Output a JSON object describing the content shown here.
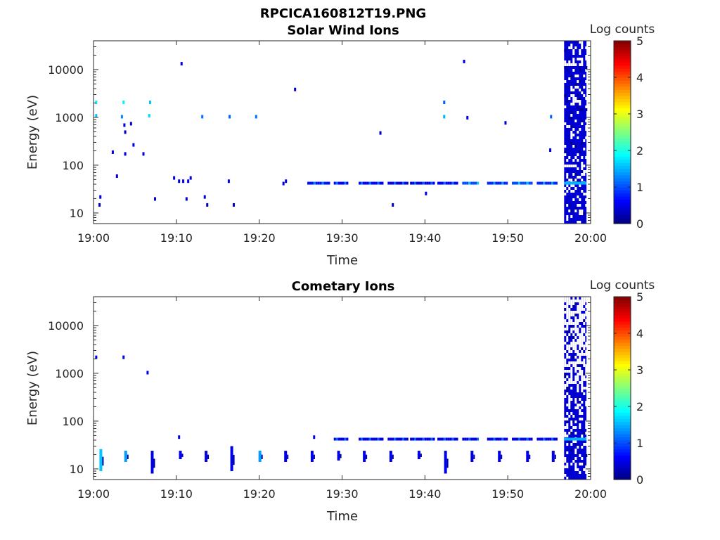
{
  "figure": {
    "title": "RPCICA160812T19.PNG"
  },
  "panels": [
    {
      "title": "Solar Wind Ions",
      "xlabel": "Time",
      "ylabel": "Energy (eV)",
      "colorbar_label": "Log counts"
    },
    {
      "title": "Cometary Ions",
      "xlabel": "Time",
      "ylabel": "Energy (eV)",
      "colorbar_label": "Log counts"
    }
  ],
  "chart_data": [
    {
      "type": "heatmap",
      "title": "Solar Wind Ions",
      "xlabel": "Time",
      "ylabel": "Energy (eV)",
      "x_range_minutes_after_1900": [
        0,
        60
      ],
      "xticks": [
        "19:00",
        "19:10",
        "19:20",
        "19:30",
        "19:40",
        "19:50",
        "20:00"
      ],
      "ylim": [
        6,
        40000
      ],
      "y_scale": "log",
      "yticks": [
        "10",
        "100",
        "1000",
        "10000"
      ],
      "colorbar": {
        "label": "Log counts",
        "range": [
          0,
          5
        ],
        "ticks": [
          "0",
          "1",
          "2",
          "3",
          "4",
          "5"
        ],
        "colormap": "jet"
      },
      "dense_region": {
        "t_start": 56.8,
        "t_end": 59.5,
        "e_min": 6,
        "e_max": 40000,
        "base_level": 0.4,
        "line_energy": 42,
        "line_level": 1.5
      },
      "samples": [
        {
          "t": 0.2,
          "e": 2100,
          "v": 1.8
        },
        {
          "t": 0.2,
          "e": 1100,
          "v": 1.6
        },
        {
          "t": 0.6,
          "e": 15,
          "v": 0.3
        },
        {
          "t": 0.7,
          "e": 22,
          "v": 0.4
        },
        {
          "t": 2.2,
          "e": 190,
          "v": 0.5
        },
        {
          "t": 2.7,
          "e": 60,
          "v": 0.5
        },
        {
          "t": 3.3,
          "e": 1050,
          "v": 1.3
        },
        {
          "t": 3.5,
          "e": 2100,
          "v": 1.8
        },
        {
          "t": 3.6,
          "e": 700,
          "v": 0.5
        },
        {
          "t": 3.7,
          "e": 500,
          "v": 0.4
        },
        {
          "t": 3.7,
          "e": 175,
          "v": 0.5
        },
        {
          "t": 4.4,
          "e": 750,
          "v": 0.5
        },
        {
          "t": 4.7,
          "e": 270,
          "v": 0.5
        },
        {
          "t": 5.9,
          "e": 175,
          "v": 0.4
        },
        {
          "t": 6.6,
          "e": 1100,
          "v": 1.7
        },
        {
          "t": 6.7,
          "e": 2100,
          "v": 1.6
        },
        {
          "t": 7.3,
          "e": 20,
          "v": 0.4
        },
        {
          "t": 9.6,
          "e": 55,
          "v": 0.5
        },
        {
          "t": 10.2,
          "e": 47,
          "v": 0.5
        },
        {
          "t": 10.5,
          "e": 13500,
          "v": 0.5
        },
        {
          "t": 10.7,
          "e": 47,
          "v": 0.5
        },
        {
          "t": 11.1,
          "e": 20,
          "v": 0.4
        },
        {
          "t": 11.3,
          "e": 47,
          "v": 0.5
        },
        {
          "t": 11.6,
          "e": 55,
          "v": 0.5
        },
        {
          "t": 13.0,
          "e": 1050,
          "v": 1.2
        },
        {
          "t": 13.3,
          "e": 22,
          "v": 0.4
        },
        {
          "t": 13.6,
          "e": 15,
          "v": 0.3
        },
        {
          "t": 16.2,
          "e": 47,
          "v": 0.5
        },
        {
          "t": 16.3,
          "e": 1050,
          "v": 1.1
        },
        {
          "t": 16.8,
          "e": 15,
          "v": 0.3
        },
        {
          "t": 19.5,
          "e": 1050,
          "v": 1.2
        },
        {
          "t": 22.8,
          "e": 42,
          "v": 0.5
        },
        {
          "t": 23.1,
          "e": 47,
          "v": 0.5
        },
        {
          "t": 24.2,
          "e": 3900,
          "v": 0.4
        },
        {
          "t": 34.5,
          "e": 480,
          "v": 0.4
        },
        {
          "t": 36.0,
          "e": 15,
          "v": 0.4
        },
        {
          "t": 40.0,
          "e": 26,
          "v": 0.5
        },
        {
          "t": 42.2,
          "e": 2100,
          "v": 1.1
        },
        {
          "t": 42.2,
          "e": 1050,
          "v": 1.5
        },
        {
          "t": 44.6,
          "e": 15000,
          "v": 0.5
        },
        {
          "t": 45.0,
          "e": 1000,
          "v": 0.5
        },
        {
          "t": 49.6,
          "e": 780,
          "v": 0.4
        },
        {
          "t": 55.0,
          "e": 210,
          "v": 0.5
        },
        {
          "t": 55.1,
          "e": 1050,
          "v": 1.1
        }
      ],
      "lines": [
        {
          "t_start": 25.8,
          "t_end": 28.5,
          "e": 42,
          "v": 0.7
        },
        {
          "t_start": 29.0,
          "t_end": 30.7,
          "e": 42,
          "v": 0.6
        },
        {
          "t_start": 32.0,
          "t_end": 35.0,
          "e": 42,
          "v": 0.6
        },
        {
          "t_start": 35.5,
          "t_end": 37.8,
          "e": 42,
          "v": 0.5
        },
        {
          "t_start": 38.2,
          "t_end": 41.0,
          "e": 42,
          "v": 0.5
        },
        {
          "t_start": 41.5,
          "t_end": 44.0,
          "e": 42,
          "v": 0.6
        },
        {
          "t_start": 44.5,
          "t_end": 46.5,
          "e": 42,
          "v": 1.0
        },
        {
          "t_start": 47.5,
          "t_end": 49.8,
          "e": 42,
          "v": 0.8
        },
        {
          "t_start": 50.5,
          "t_end": 53.0,
          "e": 42,
          "v": 1.0
        },
        {
          "t_start": 53.5,
          "t_end": 55.8,
          "e": 42,
          "v": 0.8
        }
      ]
    },
    {
      "type": "heatmap",
      "title": "Cometary Ions",
      "xlabel": "Time",
      "ylabel": "Energy (eV)",
      "x_range_minutes_after_1900": [
        0,
        60
      ],
      "xticks": [
        "19:00",
        "19:10",
        "19:20",
        "19:30",
        "19:40",
        "19:50",
        "20:00"
      ],
      "ylim": [
        6,
        40000
      ],
      "y_scale": "log",
      "yticks": [
        "10",
        "100",
        "1000",
        "10000"
      ],
      "colorbar": {
        "label": "Log counts",
        "range": [
          0,
          5
        ],
        "ticks": [
          "0",
          "1",
          "2",
          "3",
          "4",
          "5"
        ],
        "colormap": "jet"
      },
      "dense_region": {
        "t_start": 56.8,
        "t_end": 59.5,
        "e_min": 6,
        "e_max": 40000,
        "base_level": 0.4,
        "line_energy": 42,
        "line_level": 1.5
      },
      "samples": [
        {
          "t": 0.2,
          "e": 2200,
          "v": 0.5
        },
        {
          "t": 3.5,
          "e": 2200,
          "v": 0.5
        },
        {
          "t": 6.4,
          "e": 1050,
          "v": 0.5
        },
        {
          "t": 10.2,
          "e": 47,
          "v": 0.5
        },
        {
          "t": 26.5,
          "e": 47,
          "v": 0.5
        }
      ],
      "clusters": [
        {
          "t": 0.8,
          "e_min": 9,
          "e_max": 26,
          "v": 1.6
        },
        {
          "t": 3.8,
          "e_min": 14,
          "e_max": 24,
          "v": 1.4
        },
        {
          "t": 7.0,
          "e_min": 8,
          "e_max": 24,
          "v": 0.5
        },
        {
          "t": 10.4,
          "e_min": 16,
          "e_max": 24,
          "v": 0.6
        },
        {
          "t": 13.5,
          "e_min": 14,
          "e_max": 24,
          "v": 0.5
        },
        {
          "t": 16.6,
          "e_min": 9,
          "e_max": 30,
          "v": 0.5
        },
        {
          "t": 20.0,
          "e_min": 14,
          "e_max": 24,
          "v": 1.4
        },
        {
          "t": 23.1,
          "e_min": 14,
          "e_max": 24,
          "v": 0.5
        },
        {
          "t": 26.3,
          "e_min": 14,
          "e_max": 24,
          "v": 0.5
        },
        {
          "t": 29.5,
          "e_min": 15,
          "e_max": 24,
          "v": 0.5
        },
        {
          "t": 32.6,
          "e_min": 14,
          "e_max": 24,
          "v": 0.5
        },
        {
          "t": 35.8,
          "e_min": 14,
          "e_max": 24,
          "v": 0.5
        },
        {
          "t": 39.2,
          "e_min": 16,
          "e_max": 24,
          "v": 0.5
        },
        {
          "t": 42.4,
          "e_min": 8,
          "e_max": 24,
          "v": 0.5
        },
        {
          "t": 45.6,
          "e_min": 14,
          "e_max": 24,
          "v": 0.5
        },
        {
          "t": 48.9,
          "e_min": 14,
          "e_max": 24,
          "v": 0.5
        },
        {
          "t": 52.3,
          "e_min": 14,
          "e_max": 24,
          "v": 0.5
        },
        {
          "t": 55.4,
          "e_min": 14,
          "e_max": 24,
          "v": 0.5
        }
      ],
      "lines": [
        {
          "t_start": 29.0,
          "t_end": 30.7,
          "e": 42,
          "v": 0.5
        },
        {
          "t_start": 32.0,
          "t_end": 35.0,
          "e": 42,
          "v": 0.5
        },
        {
          "t_start": 35.5,
          "t_end": 37.8,
          "e": 42,
          "v": 0.5
        },
        {
          "t_start": 38.2,
          "t_end": 41.0,
          "e": 42,
          "v": 0.5
        },
        {
          "t_start": 41.5,
          "t_end": 44.0,
          "e": 42,
          "v": 0.5
        },
        {
          "t_start": 44.5,
          "t_end": 46.5,
          "e": 42,
          "v": 0.5
        },
        {
          "t_start": 47.5,
          "t_end": 49.8,
          "e": 42,
          "v": 0.5
        },
        {
          "t_start": 50.5,
          "t_end": 53.0,
          "e": 42,
          "v": 0.5
        },
        {
          "t_start": 53.5,
          "t_end": 55.8,
          "e": 42,
          "v": 0.5
        }
      ]
    }
  ]
}
